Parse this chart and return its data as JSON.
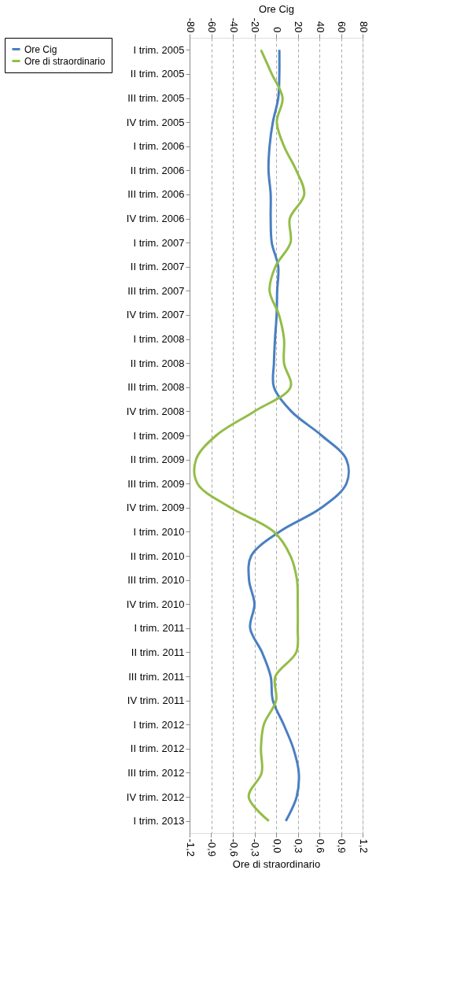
{
  "chart_data": {
    "type": "line",
    "orientation": "horizontal",
    "xlabel": "Ore di straordinario",
    "x2label": "Ore Cig",
    "categories": [
      "I trim. 2005",
      "II trim. 2005",
      "III trim. 2005",
      "IV trim. 2005",
      "I trim. 2006",
      "II trim. 2006",
      "III trim. 2006",
      "IV trim. 2006",
      "I trim. 2007",
      "II trim. 2007",
      "III trim. 2007",
      "IV trim. 2007",
      "I trim. 2008",
      "II trim. 2008",
      "III trim. 2008",
      "IV trim. 2008",
      "I trim. 2009",
      "II trim. 2009",
      "III trim. 2009",
      "IV trim. 2009",
      "I trim. 2010",
      "II trim. 2010",
      "III trim. 2010",
      "IV trim. 2010",
      "I trim. 2011",
      "II trim. 2011",
      "III trim. 2011",
      "IV trim. 2011",
      "I trim. 2012",
      "II trim. 2012",
      "III trim. 2012",
      "IV trim. 2012",
      "I trim. 2013"
    ],
    "series": [
      {
        "name": "Ore Cig",
        "color": "#4a7fc1",
        "axis": "x2",
        "values": [
          3,
          3,
          2,
          -3,
          -6,
          -7,
          -5,
          -5,
          -4,
          2,
          1,
          0.5,
          -1,
          -2,
          -2,
          14,
          42,
          65,
          65,
          42,
          3,
          -23,
          -25,
          -20,
          -24,
          -13,
          -5,
          -3,
          7,
          16,
          21,
          19,
          9
        ]
      },
      {
        "name": "Ore di straordinario",
        "color": "#93bd47",
        "values": [
          -0.21,
          -0.06,
          0.09,
          0.01,
          0.11,
          0.28,
          0.39,
          0.19,
          0.2,
          -0.01,
          -0.09,
          0.04,
          0.11,
          0.11,
          0.2,
          -0.3,
          -0.83,
          -1.11,
          -1.09,
          -0.63,
          -0.03,
          0.2,
          0.29,
          0.3,
          0.3,
          0.28,
          -0.01,
          0,
          -0.17,
          -0.21,
          -0.2,
          -0.38,
          -0.1
        ]
      }
    ],
    "xlim": [
      -1.2,
      1.2
    ],
    "xticks": [
      {
        "value": -1.2,
        "label": "-1,2"
      },
      {
        "value": -0.9,
        "label": "-0,9"
      },
      {
        "value": -0.6,
        "label": "-0,6"
      },
      {
        "value": -0.3,
        "label": "-0,3"
      },
      {
        "value": 0,
        "label": "0,0"
      },
      {
        "value": 0.3,
        "label": "0,3"
      },
      {
        "value": 0.6,
        "label": "0,6"
      },
      {
        "value": 0.9,
        "label": "0,9"
      },
      {
        "value": 1.2,
        "label": "1,2"
      }
    ],
    "x2lim": [
      -80,
      80
    ],
    "x2ticks": [
      -80,
      -60,
      -40,
      -20,
      0,
      20,
      40,
      60,
      80
    ],
    "grid": "x",
    "legend": "left",
    "marker": "none",
    "line_style": "solid"
  }
}
